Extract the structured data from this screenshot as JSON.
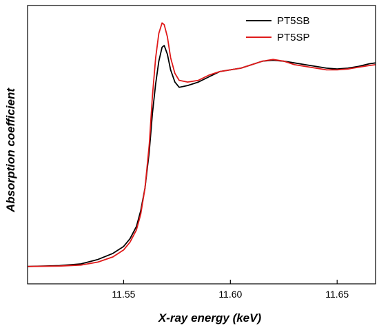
{
  "chart_data": {
    "type": "line",
    "xlabel": "X-ray energy (keV)",
    "ylabel": "Absorption coefficient",
    "xlim": [
      11.505,
      11.668
    ],
    "ylim": [
      -0.1,
      1.5
    ],
    "x_ticks": [
      11.55,
      11.6,
      11.65
    ],
    "x_tick_labels": [
      "11.55",
      "11.60",
      "11.65"
    ],
    "y_tick_labels_visible": false,
    "grid": false,
    "legend_position": "top-right",
    "series": [
      {
        "name": "PT5SB",
        "color": "#000000",
        "points": [
          [
            11.505,
            0.0
          ],
          [
            11.52,
            0.005
          ],
          [
            11.53,
            0.015
          ],
          [
            11.538,
            0.04
          ],
          [
            11.545,
            0.075
          ],
          [
            11.55,
            0.115
          ],
          [
            11.553,
            0.16
          ],
          [
            11.556,
            0.23
          ],
          [
            11.558,
            0.32
          ],
          [
            11.56,
            0.45
          ],
          [
            11.562,
            0.66
          ],
          [
            11.5635,
            0.88
          ],
          [
            11.565,
            1.05
          ],
          [
            11.5665,
            1.18
          ],
          [
            11.568,
            1.26
          ],
          [
            11.569,
            1.27
          ],
          [
            11.5705,
            1.22
          ],
          [
            11.572,
            1.13
          ],
          [
            11.574,
            1.06
          ],
          [
            11.576,
            1.03
          ],
          [
            11.58,
            1.04
          ],
          [
            11.585,
            1.06
          ],
          [
            11.59,
            1.09
          ],
          [
            11.595,
            1.12
          ],
          [
            11.6,
            1.13
          ],
          [
            11.605,
            1.14
          ],
          [
            11.61,
            1.16
          ],
          [
            11.615,
            1.18
          ],
          [
            11.62,
            1.185
          ],
          [
            11.625,
            1.18
          ],
          [
            11.63,
            1.17
          ],
          [
            11.635,
            1.16
          ],
          [
            11.64,
            1.15
          ],
          [
            11.645,
            1.14
          ],
          [
            11.65,
            1.135
          ],
          [
            11.655,
            1.14
          ],
          [
            11.66,
            1.15
          ],
          [
            11.665,
            1.165
          ],
          [
            11.668,
            1.17
          ]
        ]
      },
      {
        "name": "PT5SP",
        "color": "#e01a1a",
        "points": [
          [
            11.505,
            0.0
          ],
          [
            11.52,
            0.002
          ],
          [
            11.53,
            0.008
          ],
          [
            11.538,
            0.025
          ],
          [
            11.545,
            0.055
          ],
          [
            11.55,
            0.095
          ],
          [
            11.553,
            0.14
          ],
          [
            11.556,
            0.21
          ],
          [
            11.558,
            0.3
          ],
          [
            11.56,
            0.45
          ],
          [
            11.562,
            0.7
          ],
          [
            11.5635,
            0.98
          ],
          [
            11.565,
            1.2
          ],
          [
            11.5665,
            1.34
          ],
          [
            11.568,
            1.4
          ],
          [
            11.569,
            1.39
          ],
          [
            11.5705,
            1.32
          ],
          [
            11.572,
            1.2
          ],
          [
            11.574,
            1.11
          ],
          [
            11.576,
            1.07
          ],
          [
            11.58,
            1.06
          ],
          [
            11.585,
            1.07
          ],
          [
            11.59,
            1.1
          ],
          [
            11.595,
            1.12
          ],
          [
            11.6,
            1.13
          ],
          [
            11.605,
            1.14
          ],
          [
            11.61,
            1.16
          ],
          [
            11.615,
            1.18
          ],
          [
            11.62,
            1.19
          ],
          [
            11.625,
            1.18
          ],
          [
            11.63,
            1.16
          ],
          [
            11.635,
            1.15
          ],
          [
            11.64,
            1.14
          ],
          [
            11.645,
            1.13
          ],
          [
            11.65,
            1.13
          ],
          [
            11.655,
            1.135
          ],
          [
            11.66,
            1.145
          ],
          [
            11.665,
            1.155
          ],
          [
            11.668,
            1.16
          ]
        ]
      }
    ]
  }
}
